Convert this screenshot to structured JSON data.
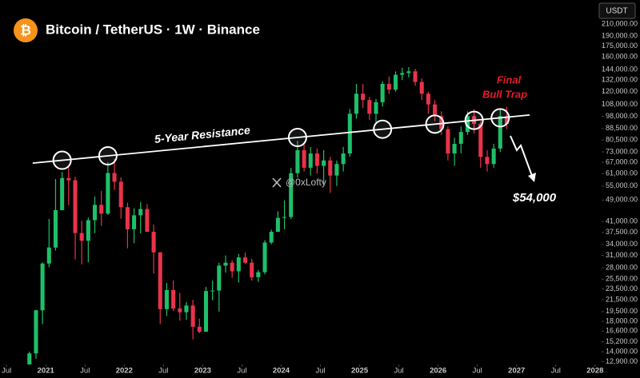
{
  "chart_data": {
    "type": "candlestick",
    "symbol_icon": "₿",
    "title": "Bitcoin / TetherUS · 1W · Binance",
    "currency": "USDT",
    "log_scale": true,
    "up_color": "#1fbf6a",
    "down_color": "#e8334a",
    "xlim": [
      "2020-06",
      "2028-02"
    ],
    "ylim": [
      12600,
      256000
    ],
    "xticks": [
      {
        "value": "2020-07",
        "label": "Jul"
      },
      {
        "value": "2021-01",
        "label": "2021"
      },
      {
        "value": "2021-07",
        "label": "Jul"
      },
      {
        "value": "2022-01",
        "label": "2022"
      },
      {
        "value": "2022-07",
        "label": "Jul"
      },
      {
        "value": "2023-01",
        "label": "2023"
      },
      {
        "value": "2023-07",
        "label": "Jul"
      },
      {
        "value": "2024-01",
        "label": "2024"
      },
      {
        "value": "2024-07",
        "label": "Jul"
      },
      {
        "value": "2025-01",
        "label": "2025"
      },
      {
        "value": "2025-07",
        "label": "Jul"
      },
      {
        "value": "2026-01",
        "label": "2026"
      },
      {
        "value": "2026-07",
        "label": "Jul"
      },
      {
        "value": "2027-01",
        "label": "2027"
      },
      {
        "value": "2027-07",
        "label": "Jul"
      },
      {
        "value": "2028-01",
        "label": "2028"
      }
    ],
    "yticks": [
      {
        "value": 210000,
        "label": "210,000.00"
      },
      {
        "value": 190000,
        "label": "190,000.00"
      },
      {
        "value": 175000,
        "label": "175,000.00"
      },
      {
        "value": 160000,
        "label": "160,000.00"
      },
      {
        "value": 144000,
        "label": "144,000.00"
      },
      {
        "value": 132000,
        "label": "132,000.00"
      },
      {
        "value": 120000,
        "label": "120,000.00"
      },
      {
        "value": 108000,
        "label": "108,000.00"
      },
      {
        "value": 98000,
        "label": "98,000.00"
      },
      {
        "value": 88500,
        "label": "88,500.00"
      },
      {
        "value": 80500,
        "label": "80,500.00"
      },
      {
        "value": 73000,
        "label": "73,000.00"
      },
      {
        "value": 67000,
        "label": "67,000.00"
      },
      {
        "value": 61000,
        "label": "61,000.00"
      },
      {
        "value": 55000,
        "label": "55,000.00"
      },
      {
        "value": 49000,
        "label": "49,000.00"
      },
      {
        "value": 41000,
        "label": "41,000.00"
      },
      {
        "value": 37500,
        "label": "37,500.00"
      },
      {
        "value": 34000,
        "label": "34,000.00"
      },
      {
        "value": 31000,
        "label": "31,000.00"
      },
      {
        "value": 28000,
        "label": "28,000.00"
      },
      {
        "value": 25500,
        "label": "25,500.00"
      },
      {
        "value": 23500,
        "label": "23,500.00"
      },
      {
        "value": 21500,
        "label": "21,500.00"
      },
      {
        "value": 19500,
        "label": "19,500.00"
      },
      {
        "value": 18000,
        "label": "18,000.00"
      },
      {
        "value": 16600,
        "label": "16,600.00"
      },
      {
        "value": 15200,
        "label": "15,200.00"
      },
      {
        "value": 14000,
        "label": "14,000.00"
      },
      {
        "value": 12900,
        "label": "12,900.00"
      }
    ],
    "candles": [
      {
        "date": "2020-10",
        "open": 10800,
        "high": 14000,
        "low": 10400,
        "close": 13800
      },
      {
        "date": "2020-11",
        "open": 13800,
        "high": 19800,
        "low": 13200,
        "close": 19700
      },
      {
        "date": "2020-12",
        "open": 19700,
        "high": 29300,
        "low": 17600,
        "close": 29000
      },
      {
        "date": "2021-01",
        "open": 29000,
        "high": 41900,
        "low": 28100,
        "close": 33100
      },
      {
        "date": "2021-02",
        "open": 33100,
        "high": 58300,
        "low": 32300,
        "close": 45100
      },
      {
        "date": "2021-03",
        "open": 45100,
        "high": 61800,
        "low": 45000,
        "close": 58800
      },
      {
        "date": "2021-04",
        "open": 58800,
        "high": 64900,
        "low": 47000,
        "close": 57700
      },
      {
        "date": "2021-05",
        "open": 57700,
        "high": 59500,
        "low": 30000,
        "close": 37300
      },
      {
        "date": "2021-06",
        "open": 37300,
        "high": 41300,
        "low": 28800,
        "close": 35000
      },
      {
        "date": "2021-07",
        "open": 35000,
        "high": 42400,
        "low": 29300,
        "close": 41500
      },
      {
        "date": "2021-08",
        "open": 41500,
        "high": 50500,
        "low": 37300,
        "close": 47100
      },
      {
        "date": "2021-09",
        "open": 47100,
        "high": 52900,
        "low": 39600,
        "close": 43800
      },
      {
        "date": "2021-10",
        "open": 43800,
        "high": 67000,
        "low": 43300,
        "close": 61300
      },
      {
        "date": "2021-11",
        "open": 61300,
        "high": 69000,
        "low": 53300,
        "close": 57000
      },
      {
        "date": "2021-12",
        "open": 57000,
        "high": 59100,
        "low": 42000,
        "close": 46200
      },
      {
        "date": "2022-01",
        "open": 46200,
        "high": 47900,
        "low": 32900,
        "close": 38500
      },
      {
        "date": "2022-02",
        "open": 38500,
        "high": 45800,
        "low": 34300,
        "close": 43200
      },
      {
        "date": "2022-03",
        "open": 43200,
        "high": 48200,
        "low": 37200,
        "close": 45500
      },
      {
        "date": "2022-04",
        "open": 45500,
        "high": 47400,
        "low": 37700,
        "close": 37700
      },
      {
        "date": "2022-05",
        "open": 37700,
        "high": 40000,
        "low": 26700,
        "close": 31800
      },
      {
        "date": "2022-06",
        "open": 31800,
        "high": 31900,
        "low": 17600,
        "close": 19900
      },
      {
        "date": "2022-07",
        "open": 19900,
        "high": 24700,
        "low": 18800,
        "close": 23300
      },
      {
        "date": "2022-08",
        "open": 23300,
        "high": 25200,
        "low": 19600,
        "close": 20000
      },
      {
        "date": "2022-09",
        "open": 20000,
        "high": 22800,
        "low": 18100,
        "close": 19400
      },
      {
        "date": "2022-10",
        "open": 19400,
        "high": 21100,
        "low": 18200,
        "close": 20500
      },
      {
        "date": "2022-11",
        "open": 20500,
        "high": 21500,
        "low": 15500,
        "close": 17200
      },
      {
        "date": "2022-12",
        "open": 17200,
        "high": 18400,
        "low": 16300,
        "close": 16500
      },
      {
        "date": "2023-01",
        "open": 16500,
        "high": 23900,
        "low": 16500,
        "close": 23100
      },
      {
        "date": "2023-02",
        "open": 23100,
        "high": 25200,
        "low": 21400,
        "close": 23200
      },
      {
        "date": "2023-03",
        "open": 23200,
        "high": 29200,
        "low": 19500,
        "close": 28500
      },
      {
        "date": "2023-04",
        "open": 28500,
        "high": 31000,
        "low": 26900,
        "close": 29200
      },
      {
        "date": "2023-05",
        "open": 29200,
        "high": 29800,
        "low": 25800,
        "close": 27200
      },
      {
        "date": "2023-06",
        "open": 27200,
        "high": 31400,
        "low": 24800,
        "close": 30500
      },
      {
        "date": "2023-07",
        "open": 30500,
        "high": 31800,
        "low": 28900,
        "close": 29200
      },
      {
        "date": "2023-08",
        "open": 29200,
        "high": 30200,
        "low": 25200,
        "close": 25900
      },
      {
        "date": "2023-09",
        "open": 25900,
        "high": 27500,
        "low": 24900,
        "close": 27000
      },
      {
        "date": "2023-10",
        "open": 27000,
        "high": 35200,
        "low": 26500,
        "close": 34500
      },
      {
        "date": "2023-11",
        "open": 34500,
        "high": 38400,
        "low": 34000,
        "close": 37700
      },
      {
        "date": "2023-12",
        "open": 37700,
        "high": 44700,
        "low": 37600,
        "close": 42300
      },
      {
        "date": "2024-01",
        "open": 42300,
        "high": 48900,
        "low": 38500,
        "close": 42600
      },
      {
        "date": "2024-02",
        "open": 42600,
        "high": 64000,
        "low": 41900,
        "close": 61200
      },
      {
        "date": "2024-03",
        "open": 61200,
        "high": 80000,
        "low": 59000,
        "close": 74000
      },
      {
        "date": "2024-04",
        "open": 74000,
        "high": 78000,
        "low": 62000,
        "close": 64000
      },
      {
        "date": "2024-05",
        "open": 64000,
        "high": 76000,
        "low": 60000,
        "close": 72000
      },
      {
        "date": "2024-06",
        "open": 72000,
        "high": 75000,
        "low": 61000,
        "close": 65000
      },
      {
        "date": "2024-07",
        "open": 65000,
        "high": 74000,
        "low": 56000,
        "close": 68000
      },
      {
        "date": "2024-08",
        "open": 68000,
        "high": 70000,
        "low": 52000,
        "close": 60000
      },
      {
        "date": "2024-09",
        "open": 60000,
        "high": 68000,
        "low": 55000,
        "close": 66000
      },
      {
        "date": "2024-10",
        "open": 66000,
        "high": 76000,
        "low": 62000,
        "close": 72000
      },
      {
        "date": "2024-11",
        "open": 72000,
        "high": 104000,
        "low": 70000,
        "close": 100000
      },
      {
        "date": "2024-12",
        "open": 100000,
        "high": 128000,
        "low": 96000,
        "close": 118000
      },
      {
        "date": "2025-01",
        "open": 118000,
        "high": 128000,
        "low": 105000,
        "close": 112000
      },
      {
        "date": "2025-02",
        "open": 112000,
        "high": 115000,
        "low": 95000,
        "close": 100000
      },
      {
        "date": "2025-03",
        "open": 100000,
        "high": 113000,
        "low": 93000,
        "close": 110000
      },
      {
        "date": "2025-04",
        "open": 110000,
        "high": 131000,
        "low": 106000,
        "close": 128000
      },
      {
        "date": "2025-05",
        "open": 128000,
        "high": 136000,
        "low": 118000,
        "close": 122000
      },
      {
        "date": "2025-06",
        "open": 122000,
        "high": 142000,
        "low": 120000,
        "close": 138000
      },
      {
        "date": "2025-07",
        "open": 138000,
        "high": 146000,
        "low": 132000,
        "close": 140000
      },
      {
        "date": "2025-08",
        "open": 140000,
        "high": 147000,
        "low": 135000,
        "close": 142000
      },
      {
        "date": "2025-09",
        "open": 142000,
        "high": 145000,
        "low": 126000,
        "close": 130000
      },
      {
        "date": "2025-10",
        "open": 130000,
        "high": 134000,
        "low": 112000,
        "close": 118000
      },
      {
        "date": "2025-11",
        "open": 118000,
        "high": 120000,
        "low": 100000,
        "close": 108000
      },
      {
        "date": "2025-12",
        "open": 108000,
        "high": 112000,
        "low": 94000,
        "close": 98000
      },
      {
        "date": "2026-01",
        "open": 98000,
        "high": 102000,
        "low": 84000,
        "close": 88000
      },
      {
        "date": "2026-02",
        "open": 88000,
        "high": 90000,
        "low": 68000,
        "close": 72000
      },
      {
        "date": "2026-03",
        "open": 72000,
        "high": 82000,
        "low": 65000,
        "close": 78000
      },
      {
        "date": "2026-04",
        "open": 78000,
        "high": 90000,
        "low": 72000,
        "close": 86000
      },
      {
        "date": "2026-05",
        "open": 86000,
        "high": 102000,
        "low": 84000,
        "close": 98000
      },
      {
        "date": "2026-06",
        "open": 98000,
        "high": 104000,
        "low": 85000,
        "close": 92000
      },
      {
        "date": "2026-07",
        "open": 92000,
        "high": 94000,
        "low": 64000,
        "close": 70000
      },
      {
        "date": "2026-08",
        "open": 70000,
        "high": 74000,
        "low": 62000,
        "close": 66000
      },
      {
        "date": "2026-09",
        "open": 66000,
        "high": 78000,
        "low": 64000,
        "close": 75000
      },
      {
        "date": "2026-10",
        "open": 75000,
        "high": 104000,
        "low": 73000,
        "close": 98000
      },
      {
        "date": "2026-11",
        "open": 98000,
        "high": 106000,
        "low": 88000,
        "close": 92000
      }
    ],
    "resistance": {
      "label": "5-Year Resistance",
      "start": {
        "date": "2020-11",
        "price": 66500
      },
      "end": {
        "date": "2027-03",
        "price": 99000
      },
      "touches": [
        "2021-03",
        "2021-10",
        "2024-03",
        "2025-04",
        "2025-12",
        "2026-06",
        "2026-10"
      ]
    },
    "annotations": {
      "trap_line1": "Final",
      "trap_line2": "Bull Trap",
      "target": "$54,000",
      "watermark": "@0xLofty"
    }
  }
}
